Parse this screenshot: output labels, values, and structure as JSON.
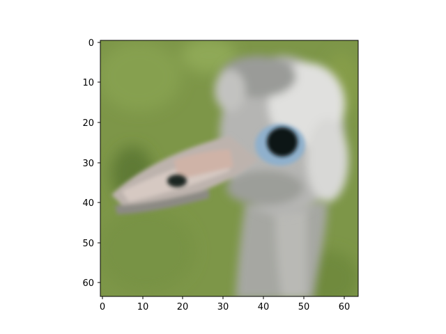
{
  "image": {
    "description_visible": false,
    "subject": "blurry close-up of an ostrich or emu head and neck against a green grass background",
    "palette": {
      "grass": "#7d9648",
      "grass_light": "#8fa957",
      "grass_dark": "#5e7a35",
      "head": "#b5b5b3",
      "head_light": "#e6e6e4",
      "head_shadow": "#7d7f7c",
      "neck": "#a6a7a2",
      "eye": "#101515",
      "eye_ring": "#8fb0cc",
      "beak_pink": "#cfb3a7",
      "nostril": "#1d2520"
    }
  },
  "axes": {
    "x_ticks": [
      "0",
      "10",
      "20",
      "30",
      "40",
      "50",
      "60"
    ],
    "y_ticks": [
      "0",
      "10",
      "20",
      "30",
      "40",
      "50",
      "60"
    ],
    "x_range": [
      -0.5,
      63.5
    ],
    "y_range": [
      -0.5,
      63.5
    ],
    "y_inverted": true
  }
}
